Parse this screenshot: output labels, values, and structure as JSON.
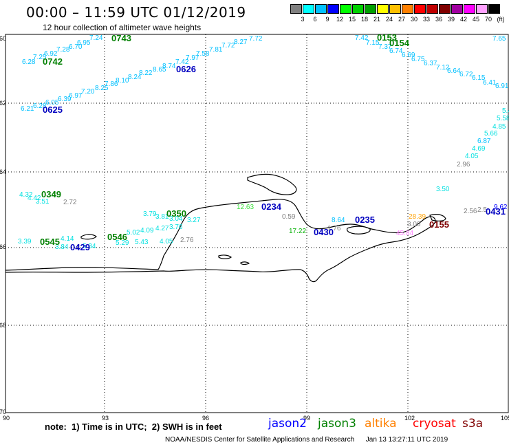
{
  "header": {
    "title": "00:00 – 11:59 UTC 01/12/2019",
    "subtitle": "12 hour collection of altimeter wave heights"
  },
  "colorbar": {
    "unit": "(ft)",
    "colors": [
      "#808080",
      "#00ffff",
      "#00c0ff",
      "#0000ff",
      "#00ff00",
      "#00d000",
      "#00a000",
      "#ffff00",
      "#ffc000",
      "#ff8000",
      "#ff0000",
      "#c00000",
      "#800000",
      "#a000a0",
      "#ff00ff",
      "#ffa0ff",
      "#000000"
    ],
    "labels": [
      "3",
      "6",
      "9",
      "12",
      "15",
      "18",
      "21",
      "24",
      "27",
      "30",
      "33",
      "36",
      "39",
      "42",
      "45",
      "70"
    ]
  },
  "axes": {
    "x_ticks": [
      "90",
      "93",
      "96",
      "99",
      "102",
      "105"
    ],
    "y_ticks": [
      "-60",
      "-62",
      "-64",
      "-66",
      "-68",
      "-70"
    ]
  },
  "annotations": {
    "swh": [
      {
        "t": "7.24",
        "c": "#00c0ff"
      },
      {
        "t": "6.95",
        "c": "#00c0ff"
      },
      {
        "t": "6.70",
        "c": "#00c0ff"
      },
      {
        "t": "7.28",
        "c": "#00c0ff"
      },
      {
        "t": "6.92",
        "c": "#00c0ff"
      },
      {
        "t": "7.25",
        "c": "#00c0ff"
      },
      {
        "t": "6.28",
        "c": "#00c0ff"
      },
      {
        "t": "7.72",
        "c": "#00c0ff"
      },
      {
        "t": "8.27",
        "c": "#00c0ff"
      },
      {
        "t": "7.72",
        "c": "#00c0ff"
      },
      {
        "t": "7.81",
        "c": "#00c0ff"
      },
      {
        "t": "7.58",
        "c": "#00c0ff"
      },
      {
        "t": "7.97",
        "c": "#00c0ff"
      },
      {
        "t": "7.42",
        "c": "#00c0ff"
      },
      {
        "t": "8.74",
        "c": "#00c0ff"
      },
      {
        "t": "8.65",
        "c": "#00c0ff"
      },
      {
        "t": "8.22",
        "c": "#00c0ff"
      },
      {
        "t": "8.24",
        "c": "#00c0ff"
      },
      {
        "t": "8.10",
        "c": "#00c0ff"
      },
      {
        "t": "7.86",
        "c": "#00c0ff"
      },
      {
        "t": "8.25",
        "c": "#00c0ff"
      },
      {
        "t": "7.20",
        "c": "#00c0ff"
      },
      {
        "t": "6.97",
        "c": "#00c0ff"
      },
      {
        "t": "6.39",
        "c": "#00c0ff"
      },
      {
        "t": "6.05",
        "c": "#00c0ff"
      },
      {
        "t": "6.28",
        "c": "#00c0ff"
      },
      {
        "t": "6.21",
        "c": "#00c0ff"
      },
      {
        "t": "7.42",
        "c": "#00c0ff"
      },
      {
        "t": "7.15",
        "c": "#00c0ff"
      },
      {
        "t": "7.37",
        "c": "#00c0ff"
      },
      {
        "t": "6.74",
        "c": "#00c0ff"
      },
      {
        "t": "6.69",
        "c": "#00c0ff"
      },
      {
        "t": "6.75",
        "c": "#00c0ff"
      },
      {
        "t": "6.37",
        "c": "#00c0ff"
      },
      {
        "t": "7.12",
        "c": "#00c0ff"
      },
      {
        "t": "6.64",
        "c": "#00c0ff"
      },
      {
        "t": "6.72",
        "c": "#00c0ff"
      },
      {
        "t": "6.15",
        "c": "#00c0ff"
      },
      {
        "t": "6.41",
        "c": "#00c0ff"
      },
      {
        "t": "6.91",
        "c": "#00c0ff"
      },
      {
        "t": "7.65",
        "c": "#00c0ff"
      },
      {
        "t": "5.4",
        "c": "#00e0e0"
      },
      {
        "t": "5.58",
        "c": "#00e0e0"
      },
      {
        "t": "4.85",
        "c": "#00e0e0"
      },
      {
        "t": "5.66",
        "c": "#00e0e0"
      },
      {
        "t": "6.87",
        "c": "#00c0ff"
      },
      {
        "t": "4.69",
        "c": "#00e0e0"
      },
      {
        "t": "4.05",
        "c": "#00e0e0"
      },
      {
        "t": "2.96",
        "c": "#808080"
      },
      {
        "t": "3.50",
        "c": "#00e0e0"
      },
      {
        "t": "4.32",
        "c": "#00e0e0"
      },
      {
        "t": "4.42",
        "c": "#00e0e0"
      },
      {
        "t": "3.51",
        "c": "#00e0e0"
      },
      {
        "t": "2.72",
        "c": "#808080"
      },
      {
        "t": "3.79",
        "c": "#00e0e0"
      },
      {
        "t": "3.81",
        "c": "#00e0e0"
      },
      {
        "t": "3.04",
        "c": "#00e0e0"
      },
      {
        "t": "3.27",
        "c": "#00e0e0"
      },
      {
        "t": "12.63",
        "c": "#40e040"
      },
      {
        "t": "0.59",
        "c": "#808080"
      },
      {
        "t": "17.22",
        "c": "#00b000"
      },
      {
        "t": "8.64",
        "c": "#00c0ff"
      },
      {
        "t": "1.76",
        "c": "#808080"
      },
      {
        "t": "3.00",
        "c": "#808080"
      },
      {
        "t": "2.56",
        "c": "#808080"
      },
      {
        "t": "2.5",
        "c": "#808080"
      },
      {
        "t": "9.62",
        "c": "#0000ff"
      },
      {
        "t": "28.39",
        "c": "#ffa000"
      },
      {
        "t": "45.84",
        "c": "#ff80ff"
      },
      {
        "t": "3.39",
        "c": "#00e0e0"
      },
      {
        "t": "4.14",
        "c": "#00e0e0"
      },
      {
        "t": "5.02",
        "c": "#00e0e0"
      },
      {
        "t": "4.09",
        "c": "#00e0e0"
      },
      {
        "t": "4.27",
        "c": "#00e0e0"
      },
      {
        "t": "3.76",
        "c": "#00e0e0"
      },
      {
        "t": "3.84",
        "c": "#00e0e0"
      },
      {
        "t": "5.29",
        "c": "#00e0e0"
      },
      {
        "t": "5.43",
        "c": "#00e0e0"
      },
      {
        "t": "4.05",
        "c": "#00e0e0"
      },
      {
        "t": "2.76",
        "c": "#808080"
      },
      {
        "t": "5.34",
        "c": "#00e0e0"
      }
    ],
    "passes": [
      {
        "t": "0743",
        "c": "#008000"
      },
      {
        "t": "0742",
        "c": "#008000"
      },
      {
        "t": "0626",
        "c": "#0000c0"
      },
      {
        "t": "0625",
        "c": "#0000c0"
      },
      {
        "t": "0153",
        "c": "#008000"
      },
      {
        "t": "0154",
        "c": "#008000"
      },
      {
        "t": "0349",
        "c": "#008000"
      },
      {
        "t": "0350",
        "c": "#008000"
      },
      {
        "t": "0234",
        "c": "#0000c0"
      },
      {
        "t": "0235",
        "c": "#0000c0"
      },
      {
        "t": "0430",
        "c": "#0000c0"
      },
      {
        "t": "0431",
        "c": "#0000c0"
      },
      {
        "t": "0155",
        "c": "#800000"
      },
      {
        "t": "0545",
        "c": "#008000"
      },
      {
        "t": "0546",
        "c": "#008000"
      },
      {
        "t": "0429",
        "c": "#0000c0"
      }
    ]
  },
  "footer": {
    "note": "note:  1) Time is in UTC;  2) SWH is in feet",
    "satellites": [
      {
        "name": "jason2",
        "color": "#0000ff"
      },
      {
        "name": "jason3",
        "color": "#008000"
      },
      {
        "name": "altika",
        "color": "#ff8000"
      },
      {
        "name": "cryosat",
        "color": "#ff0000"
      },
      {
        "name": "s3a",
        "color": "#800000"
      }
    ],
    "credit": "NOAA/NESDIS Center for Satellite Applications and Research      Jan 13 13:27:11 UTC 2019"
  }
}
